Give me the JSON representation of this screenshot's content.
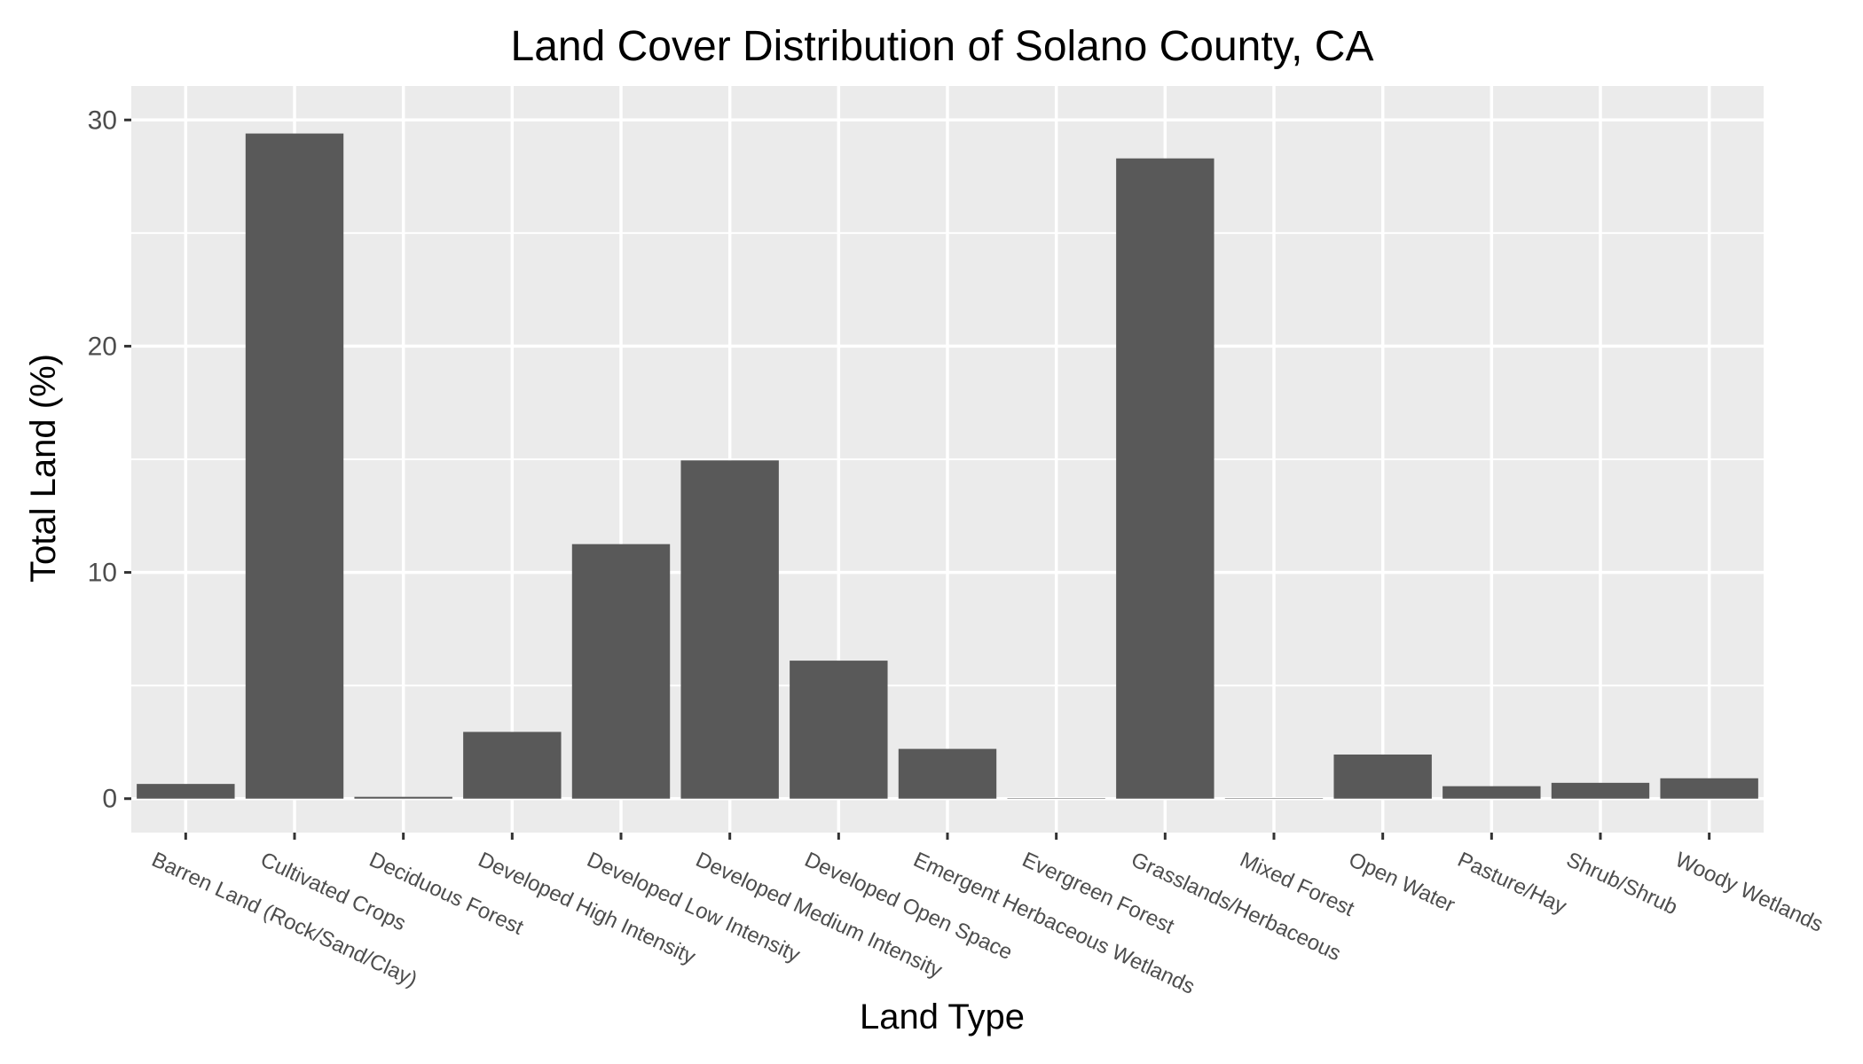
{
  "chart_data": {
    "type": "bar",
    "title": "Land Cover Distribution of Solano County, CA",
    "xlabel": "Land Type",
    "ylabel": "Total Land (%)",
    "ylim": [
      -1.5,
      31.5
    ],
    "yticks": [
      0,
      10,
      20,
      30
    ],
    "grid": true,
    "legend": "none",
    "bar_color": "#595959",
    "panel_color": "#ebebeb",
    "categories": [
      "Barren Land (Rock/Sand/Clay)",
      "Cultivated Crops",
      "Deciduous Forest",
      "Developed High Intensity",
      "Developed Low Intensity",
      "Developed Medium Intensity",
      "Developed Open Space",
      "Emergent Herbaceous Wetlands",
      "Evergreen Forest",
      "Grasslands/Herbaceous",
      "Mixed Forest",
      "Open Water",
      "Pasture/Hay",
      "Shrub/Shrub",
      "Woody Wetlands"
    ],
    "values": [
      0.65,
      29.4,
      0.08,
      2.95,
      11.25,
      14.95,
      6.1,
      2.2,
      0.01,
      28.3,
      0.01,
      1.95,
      0.55,
      0.7,
      0.9
    ]
  }
}
